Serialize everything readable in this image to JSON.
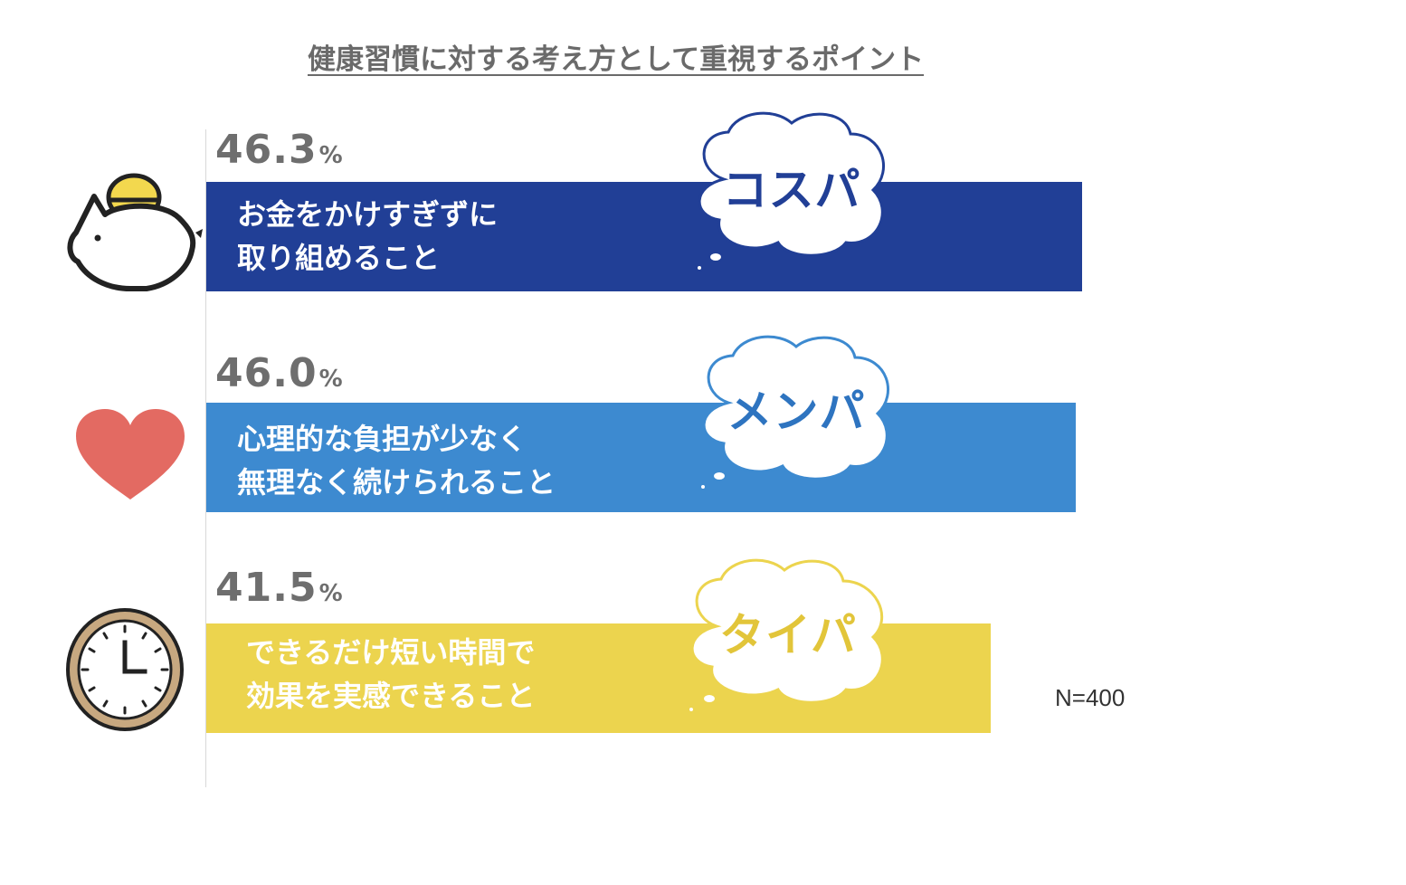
{
  "title": "健康習慣に対する考え方として重視するポイント",
  "note": "N=400",
  "chart_data": {
    "type": "bar",
    "orientation": "horizontal",
    "unit": "%",
    "categories": [
      "お金をかけすぎずに取り組めること",
      "心理的な負担が少なく無理なく続けられること",
      "できるだけ短い時間で効果を実感できること"
    ],
    "values": [
      46.3,
      46.0,
      41.5
    ],
    "xlim": [
      0,
      58
    ],
    "items": [
      {
        "value_text": "46.3",
        "unit": "%",
        "label_lines": [
          "お金をかけすぎずに",
          "取り組めること"
        ],
        "tag": "コスパ",
        "icon": "piggy-bank-icon",
        "color": "#213f96",
        "tag_color": "#213f96",
        "cloud_stroke": "#213f96"
      },
      {
        "value_text": "46.0",
        "unit": "%",
        "label_lines": [
          "心理的な負担が少なく",
          "無理なく続けられること"
        ],
        "tag": "メンパ",
        "icon": "heart-icon",
        "color": "#3d8ad0",
        "tag_color": "#2e74c0",
        "cloud_stroke": "#3d8ad0"
      },
      {
        "value_text": "41.5",
        "unit": "%",
        "label_lines": [
          "できるだけ短い時間で",
          "効果を実感できること"
        ],
        "tag": "タイパ",
        "icon": "clock-icon",
        "color": "#ecd44e",
        "tag_color": "#e2c53a",
        "cloud_stroke": "#ecd44e"
      }
    ]
  }
}
